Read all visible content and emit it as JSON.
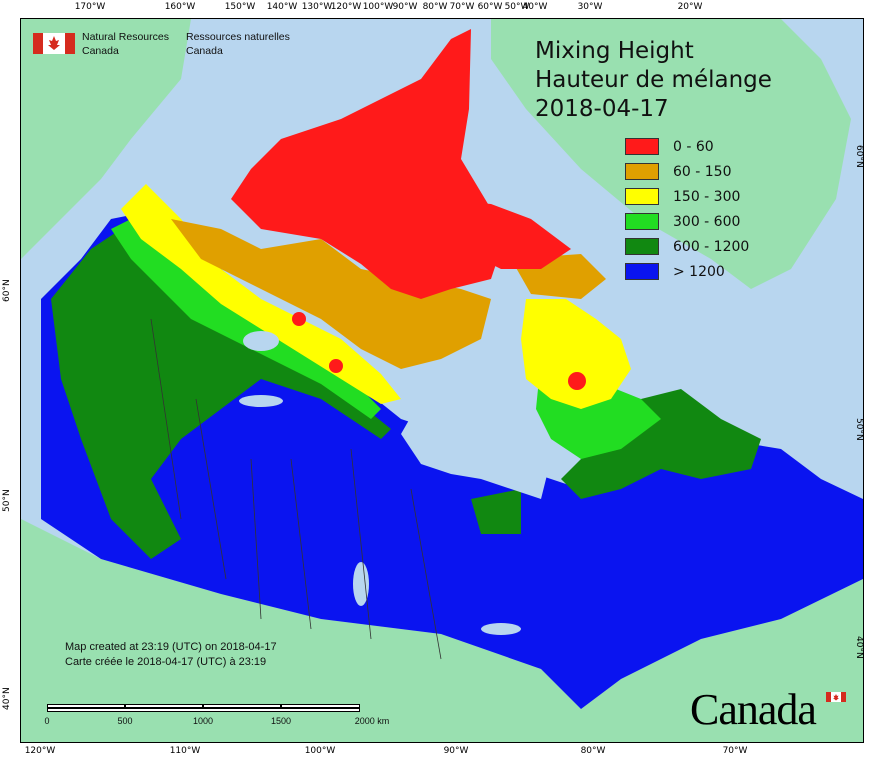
{
  "map": {
    "title_en": "Mixing Height",
    "title_fr": "Hauteur de mélange",
    "date": "2018-04-17",
    "agency_en_line1": "Natural Resources",
    "agency_en_line2": "Canada",
    "agency_fr_line1": "Ressources naturelles",
    "agency_fr_line2": "Canada",
    "created_en": "Map created at 23:19 (UTC) on 2018-04-17",
    "created_fr": "Carte créée le 2018-04-17 (UTC) à 23:19",
    "wordmark": "Canada"
  },
  "legend": [
    {
      "label": "0 - 60",
      "color": "#ff1a1a"
    },
    {
      "label": "60 - 150",
      "color": "#e0a000"
    },
    {
      "label": "150 - 300",
      "color": "#ffff00"
    },
    {
      "label": "300 - 600",
      "color": "#22dd22"
    },
    {
      "label": "600 - 1200",
      "color": "#118811"
    },
    {
      "label": "> 1200",
      "color": "#0a14f0"
    }
  ],
  "graticule": {
    "top": [
      "170°W",
      "160°W",
      "150°W",
      "140°W",
      "130°W",
      "120°W",
      "110°W",
      "100°W",
      "90°W",
      "80°W",
      "70°W",
      "60°W",
      "50°W",
      "40°W",
      "30°W",
      "20°W"
    ],
    "bottom": [
      "120°W",
      "110°W",
      "100°W",
      "90°W",
      "80°W",
      "70°W"
    ],
    "left": [
      "60°N",
      "50°N",
      "40°N"
    ],
    "right": [
      "60°N",
      "50°N",
      "40°N"
    ]
  },
  "scale": {
    "ticks": [
      "0",
      "500",
      "1000",
      "1500",
      "2000 km"
    ]
  },
  "colors": {
    "ocean": "#b8d6ef",
    "foreign_land": "#99e0b0",
    "lakes": "#b8d6ef"
  }
}
